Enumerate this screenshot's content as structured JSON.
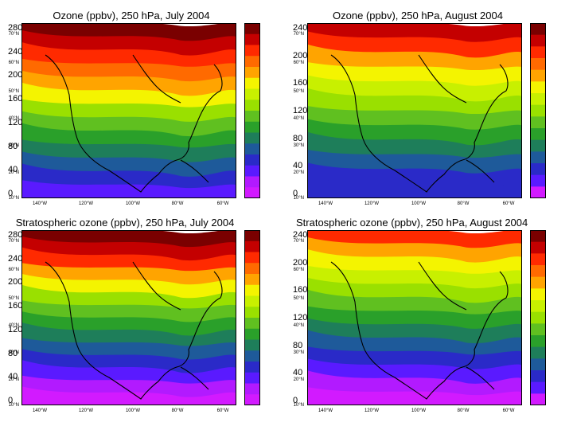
{
  "panels": [
    {
      "title": "Ozone (ppbv), 250 hPa, July 2004",
      "colorbar": {
        "labels": [
          "280",
          "240",
          "200",
          "160",
          "120",
          "80",
          "40",
          "0"
        ],
        "colors": [
          "#7a0000",
          "#c40000",
          "#ff2a00",
          "#ff6a00",
          "#ffa400",
          "#f4f400",
          "#c8f000",
          "#9ae000",
          "#60c020",
          "#2aa02a",
          "#1e7e5a",
          "#1e5a9a",
          "#2a2ac8",
          "#5a1aff",
          "#b21aff",
          "#d21aff"
        ]
      },
      "pattern": "total-july"
    },
    {
      "title": "Ozone (ppbv), 250 hPa, August 2004",
      "colorbar": {
        "labels": [
          "240",
          "200",
          "160",
          "120",
          "80",
          "40",
          "0"
        ],
        "colors": [
          "#7a0000",
          "#c40000",
          "#ff2a00",
          "#ff6a00",
          "#ffa400",
          "#f4f400",
          "#c8f000",
          "#9ae000",
          "#60c020",
          "#2aa02a",
          "#1e7e5a",
          "#1e5a9a",
          "#2a2ac8",
          "#5a1aff",
          "#d21aff"
        ]
      },
      "pattern": "total-august"
    },
    {
      "title": "Stratospheric ozone (ppbv), 250 hPa, July 2004",
      "colorbar": {
        "labels": [
          "280",
          "240",
          "200",
          "160",
          "120",
          "80",
          "40",
          "0"
        ],
        "colors": [
          "#7a0000",
          "#c40000",
          "#ff2a00",
          "#ff6a00",
          "#ffa400",
          "#f4f400",
          "#c8f000",
          "#9ae000",
          "#60c020",
          "#2aa02a",
          "#1e7e5a",
          "#1e5a9a",
          "#2a2ac8",
          "#5a1aff",
          "#b21aff",
          "#d21aff"
        ]
      },
      "pattern": "strat-july"
    },
    {
      "title": "Stratospheric ozone (ppbv), 250 hPa, August 2004",
      "colorbar": {
        "labels": [
          "240",
          "200",
          "160",
          "120",
          "80",
          "40",
          "0"
        ],
        "colors": [
          "#7a0000",
          "#c40000",
          "#ff2a00",
          "#ff6a00",
          "#ffa400",
          "#f4f400",
          "#c8f000",
          "#9ae000",
          "#60c020",
          "#2aa02a",
          "#1e7e5a",
          "#1e5a9a",
          "#2a2ac8",
          "#5a1aff",
          "#d21aff"
        ]
      },
      "pattern": "strat-august"
    }
  ],
  "lat_labels": [
    "70°N",
    "60°N",
    "50°N",
    "40°N",
    "30°N",
    "20°N",
    "10°N"
  ],
  "lon_labels": [
    "140°W",
    "120°W",
    "100°W",
    "80°W",
    "60°W"
  ]
}
